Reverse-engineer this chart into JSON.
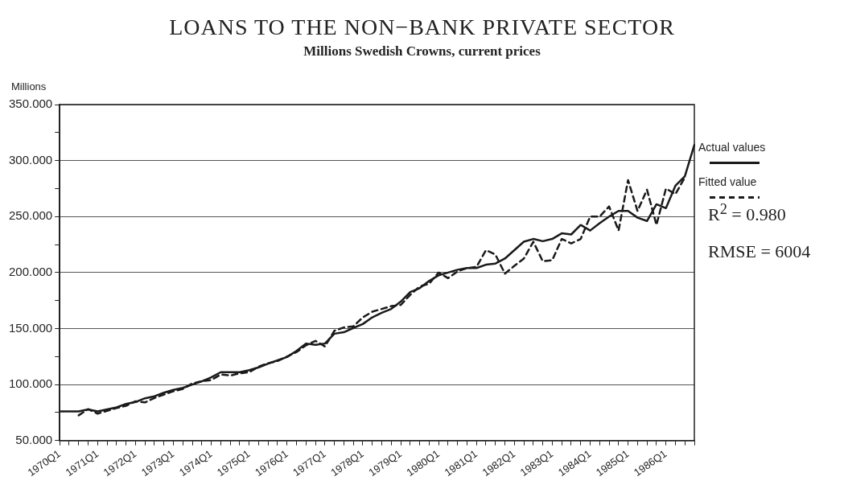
{
  "chart_data": {
    "type": "line",
    "title": "LOANS TO THE NON−BANK PRIVATE SECTOR",
    "subtitle": "Millions Swedish Crowns, current prices",
    "ylabel": "Millions",
    "categories": [
      "1970Q1",
      null,
      null,
      null,
      "1971Q1",
      null,
      null,
      null,
      "1972Q1",
      null,
      null,
      null,
      "1973Q1",
      null,
      null,
      null,
      "1974Q1",
      null,
      null,
      null,
      "1975Q1",
      null,
      null,
      null,
      "1976Q1",
      null,
      null,
      null,
      "1977Q1",
      null,
      null,
      null,
      "1978Q1",
      null,
      null,
      null,
      "1979Q1",
      null,
      null,
      null,
      "1980Q1",
      null,
      null,
      null,
      "1981Q1",
      null,
      null,
      null,
      "1982Q1",
      null,
      null,
      null,
      "1983Q1",
      null,
      null,
      null,
      "1984Q1",
      null,
      null,
      null,
      "1985Q1",
      null,
      null,
      null,
      "1986Q1",
      null,
      null,
      null
    ],
    "series": [
      {
        "name": "Actual values",
        "color": "#1a1a1a",
        "line_style": "solid",
        "values": [
          76,
          76,
          76,
          77.8,
          76,
          77.8,
          79.6,
          82.7,
          84.4,
          87.7,
          89.5,
          92.7,
          95.2,
          97,
          100,
          102.8,
          106.5,
          111,
          111,
          111,
          112.8,
          115.3,
          118.6,
          121.6,
          124.6,
          130,
          136.6,
          135.4,
          136.6,
          145.4,
          146.7,
          150.5,
          154,
          160,
          164,
          167.5,
          174,
          182.5,
          186,
          192.5,
          197.5,
          200,
          202.5,
          204,
          204,
          207,
          208,
          212.5,
          220,
          227.5,
          230,
          228,
          230,
          235,
          234,
          242.5,
          237.5,
          244,
          250,
          255,
          255,
          249,
          246,
          261,
          257.5,
          277.5,
          286,
          314
        ]
      },
      {
        "name": "Fitted value",
        "color": "#1a1a1a",
        "line_style": "dashed",
        "values": [
          null,
          null,
          72.5,
          78,
          74,
          76.5,
          79,
          81,
          85,
          84,
          88,
          91,
          94,
          96,
          101,
          103,
          104,
          109,
          108,
          110,
          111,
          116,
          119,
          121,
          125,
          129,
          135,
          139,
          134,
          148,
          151,
          152,
          160,
          165,
          167.5,
          170,
          171,
          180,
          187.5,
          190,
          200,
          195,
          201,
          204,
          205,
          220,
          216,
          199,
          206,
          212.5,
          227.5,
          210,
          211,
          230,
          226,
          230,
          250,
          250,
          259,
          237.5,
          282.5,
          255,
          274,
          242.5,
          275,
          270,
          285,
          null
        ]
      }
    ],
    "ylim": [
      50,
      350
    ],
    "yticks": [
      {
        "value": 50,
        "label": "50.000"
      },
      {
        "value": 75,
        "label": null
      },
      {
        "value": 100,
        "label": "100.000"
      },
      {
        "value": 125,
        "label": null
      },
      {
        "value": 150,
        "label": "150.000"
      },
      {
        "value": 175,
        "label": null
      },
      {
        "value": 200,
        "label": "200.000"
      },
      {
        "value": 225,
        "label": null
      },
      {
        "value": 250,
        "label": "250.000"
      },
      {
        "value": 275,
        "label": null
      },
      {
        "value": 300,
        "label": "300.000"
      },
      {
        "value": 325,
        "label": null
      },
      {
        "value": 350,
        "label": "350.000"
      }
    ],
    "grid": "y",
    "legend": "right",
    "marker": "none",
    "annotations": [
      "R$^{2}$ = 0.980",
      "RMSE = 6004"
    ]
  }
}
